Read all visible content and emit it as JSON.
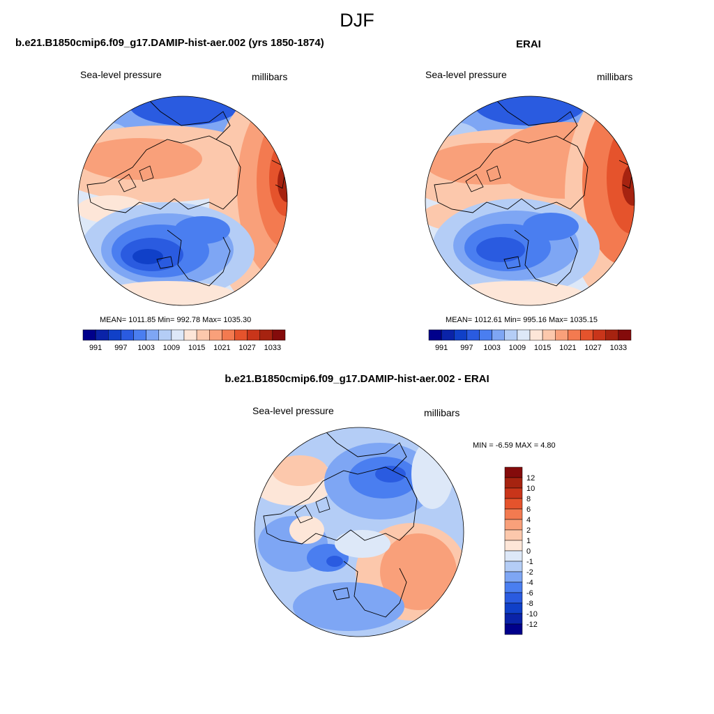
{
  "figure": {
    "title": "DJF"
  },
  "panels": [
    {
      "title": "b.e21.B1850cmip6.f09_g17.DAMIP-hist-aer.002 (yrs 1850-1874)",
      "left_label": "Sea-level pressure",
      "right_label": "millibars",
      "stats": "MEAN= 1011.85  Min= 992.78  Max= 1035.30"
    },
    {
      "title": "ERAI",
      "left_label": "Sea-level pressure",
      "right_label": "millibars",
      "stats": "MEAN= 1012.61  Min= 995.16  Max= 1035.15"
    },
    {
      "title": "b.e21.B1850cmip6.f09_g17.DAMIP-hist-aer.002 - ERAI",
      "left_label": "Sea-level pressure",
      "right_label": "millibars",
      "stats": "MIN =  -6.59 MAX =   4.80"
    }
  ],
  "colorbar_slp": {
    "colors": [
      "#00008b",
      "#0a23a8",
      "#1040c8",
      "#2a5be0",
      "#4a7ef0",
      "#7ea6f4",
      "#b4cdf6",
      "#dde8f8",
      "#fde6d8",
      "#fcc8ac",
      "#f9a07a",
      "#f37a50",
      "#e5532c",
      "#c9351a",
      "#a62310",
      "#840b0b"
    ],
    "tick_labels": [
      "991",
      "997",
      "1003",
      "1009",
      "1015",
      "1021",
      "1027",
      "1033"
    ]
  },
  "colorbar_diff": {
    "colors": [
      "#00008b",
      "#0a23a8",
      "#1040c8",
      "#2a5be0",
      "#4a7ef0",
      "#7ea6f4",
      "#b4cdf6",
      "#dde8f8",
      "#fde6d8",
      "#fcc8ac",
      "#f9a07a",
      "#f37a50",
      "#e5532c",
      "#c9351a",
      "#a62310",
      "#840b0b"
    ],
    "tick_labels": [
      "12",
      "10",
      "8",
      "6",
      "4",
      "2",
      "1",
      "0",
      "-1",
      "-2",
      "-4",
      "-6",
      "-8",
      "-10",
      "-12"
    ]
  }
}
